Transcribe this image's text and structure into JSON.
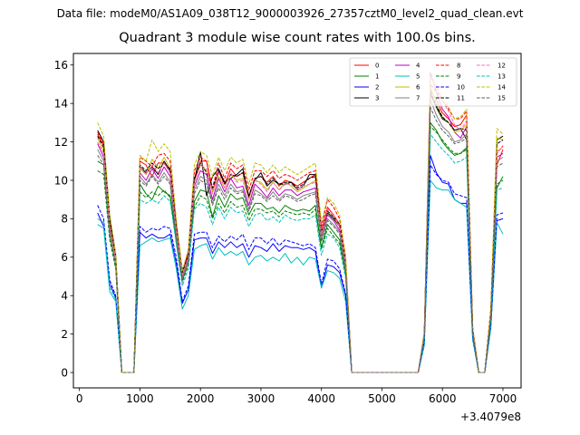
{
  "figure": {
    "suptitle": "Data file: modeM0/AS1A09_038T12_9000003926_27357cztM0_level2_quad_clean.evt"
  },
  "chart_data": {
    "type": "line",
    "title": "Quadrant 3 module wise count rates with 100.0s bins.",
    "xlabel": "",
    "ylabel": "",
    "x_offset_text": "+3.4079e8",
    "xlim": [
      -100,
      7300
    ],
    "ylim": [
      -0.8,
      16.6
    ],
    "xticks": [
      0,
      1000,
      2000,
      3000,
      4000,
      5000,
      6000,
      7000
    ],
    "yticks": [
      0,
      2,
      4,
      6,
      8,
      10,
      12,
      14,
      16
    ],
    "grid": false,
    "legend_position": "top-right",
    "x": [
      300,
      400,
      500,
      600,
      700,
      800,
      900,
      1000,
      1100,
      1200,
      1300,
      1400,
      1500,
      1600,
      1700,
      1800,
      1900,
      2000,
      2100,
      2200,
      2300,
      2400,
      2500,
      2600,
      2700,
      2800,
      2900,
      3000,
      3100,
      3200,
      3300,
      3400,
      3500,
      3600,
      3700,
      3800,
      3900,
      4000,
      4100,
      4200,
      4300,
      4400,
      4500,
      4600,
      4700,
      4800,
      4900,
      5000,
      5100,
      5200,
      5300,
      5400,
      5500,
      5600,
      5700,
      5800,
      5900,
      6000,
      6100,
      6200,
      6300,
      6400,
      6500,
      6600,
      6700,
      6800,
      6900,
      7000
    ],
    "series": [
      {
        "name": "0",
        "color": "#ff0000",
        "dashed": false,
        "values": [
          12.4,
          11.8,
          7.8,
          6.0,
          0,
          0,
          0,
          11.0,
          10.8,
          10.2,
          10.9,
          10.9,
          10.4,
          7.7,
          5.1,
          6.2,
          10.0,
          11.0,
          11.0,
          9.4,
          10.5,
          9.8,
          10.6,
          10.2,
          10.4,
          9.2,
          10.1,
          10.2,
          9.9,
          10.2,
          9.7,
          10.0,
          9.9,
          9.7,
          9.9,
          10.1,
          10.3,
          7.4,
          8.6,
          8.2,
          7.7,
          5.8,
          0,
          0,
          0,
          0,
          0,
          0,
          0,
          0,
          0,
          0,
          0,
          0,
          2.0,
          14.7,
          14.2,
          13.5,
          13.2,
          12.8,
          12.9,
          13.4,
          2.3,
          0,
          0,
          3.2,
          10.8,
          11.6
        ]
      },
      {
        "name": "1",
        "color": "#008000",
        "dashed": false,
        "values": [
          11.0,
          10.8,
          7.2,
          5.6,
          0,
          0,
          0,
          9.8,
          9.3,
          9.0,
          9.7,
          9.4,
          9.2,
          7.0,
          4.8,
          5.8,
          8.9,
          9.5,
          9.4,
          8.1,
          9.2,
          8.6,
          9.3,
          9.0,
          9.1,
          8.2,
          8.8,
          8.8,
          8.5,
          8.6,
          8.3,
          8.7,
          8.5,
          8.4,
          8.5,
          8.4,
          8.7,
          6.5,
          7.7,
          7.3,
          6.9,
          5.2,
          0,
          0,
          0,
          0,
          0,
          0,
          0,
          0,
          0,
          0,
          0,
          0,
          1.8,
          13.0,
          12.6,
          12.0,
          11.6,
          11.3,
          11.4,
          11.7,
          2.0,
          0,
          0,
          2.9,
          9.6,
          10.2
        ]
      },
      {
        "name": "2",
        "color": "#0000ff",
        "dashed": false,
        "values": [
          8.3,
          7.6,
          4.6,
          3.9,
          0,
          0,
          0,
          7.3,
          7.0,
          7.2,
          7.0,
          7.0,
          7.2,
          5.7,
          3.6,
          4.3,
          6.9,
          7.0,
          7.0,
          6.2,
          6.8,
          6.5,
          6.8,
          6.5,
          6.7,
          6.0,
          6.6,
          6.5,
          6.3,
          6.7,
          6.3,
          6.6,
          6.5,
          6.5,
          6.4,
          6.5,
          6.3,
          4.4,
          5.6,
          5.5,
          5.2,
          4.0,
          0,
          0,
          0,
          0,
          0,
          0,
          0,
          0,
          0,
          0,
          0,
          0,
          1.5,
          11.3,
          10.4,
          9.9,
          9.8,
          9.0,
          8.8,
          8.8,
          1.8,
          0,
          0,
          2.4,
          7.9,
          8.0
        ]
      },
      {
        "name": "3",
        "color": "#000000",
        "dashed": false,
        "values": [
          12.6,
          12.0,
          8.1,
          6.1,
          0,
          0,
          0,
          10.7,
          10.4,
          10.7,
          10.3,
          11.0,
          10.5,
          7.6,
          5.3,
          6.1,
          10.0,
          11.5,
          9.2,
          10.2,
          10.6,
          9.9,
          10.1,
          10.3,
          10.6,
          9.1,
          10.0,
          10.4,
          9.7,
          10.0,
          9.8,
          9.8,
          9.9,
          9.5,
          9.7,
          10.3,
          10.3,
          7.3,
          8.3,
          8.0,
          7.6,
          5.7,
          0,
          0,
          0,
          0,
          0,
          0,
          0,
          0,
          0,
          0,
          0,
          0,
          2.0,
          14.5,
          13.8,
          13.2,
          13.0,
          12.6,
          12.7,
          12.1,
          2.2,
          0,
          0,
          3.1,
          12.1,
          12.3
        ]
      },
      {
        "name": "4",
        "color": "#bf00bf",
        "dashed": false,
        "values": [
          11.9,
          11.2,
          7.5,
          5.8,
          0,
          0,
          0,
          10.4,
          10.0,
          10.6,
          10.1,
          10.7,
          10.2,
          7.3,
          5.0,
          5.9,
          9.7,
          10.5,
          10.3,
          9.0,
          10.1,
          9.4,
          10.1,
          9.6,
          9.7,
          8.7,
          9.8,
          9.5,
          9.1,
          9.6,
          9.2,
          9.5,
          9.5,
          9.2,
          9.4,
          9.5,
          9.6,
          7.1,
          8.2,
          7.9,
          7.4,
          5.5,
          0,
          0,
          0,
          0,
          0,
          0,
          0,
          0,
          0,
          0,
          0,
          0,
          1.9,
          15.6,
          14.6,
          13.7,
          13.3,
          12.5,
          12.2,
          12.8,
          2.2,
          0,
          0,
          3.0,
          11.2,
          11.4
        ]
      },
      {
        "name": "5",
        "color": "#00bfbf",
        "dashed": false,
        "values": [
          7.7,
          7.5,
          4.2,
          3.7,
          0,
          0,
          0,
          6.6,
          6.8,
          7.0,
          6.8,
          6.9,
          7.0,
          5.4,
          3.3,
          4.0,
          6.4,
          6.6,
          6.7,
          5.9,
          6.5,
          6.1,
          6.3,
          6.1,
          6.3,
          5.6,
          6.0,
          6.1,
          5.8,
          6.0,
          5.8,
          6.2,
          5.7,
          6.0,
          5.6,
          6.0,
          5.9,
          4.4,
          5.3,
          5.2,
          4.9,
          3.7,
          0,
          0,
          0,
          0,
          0,
          0,
          0,
          0,
          0,
          0,
          0,
          0,
          1.4,
          10.0,
          9.6,
          9.5,
          9.5,
          9.0,
          8.8,
          8.6,
          1.7,
          0,
          0,
          2.3,
          7.8,
          7.2
        ]
      },
      {
        "name": "6",
        "color": "#bfbf00",
        "dashed": false,
        "values": [
          12.2,
          11.5,
          7.7,
          5.9,
          0,
          0,
          0,
          10.6,
          10.3,
          11.1,
          10.6,
          11.2,
          10.6,
          7.5,
          5.1,
          6.0,
          9.9,
          10.8,
          10.5,
          9.4,
          10.2,
          9.6,
          10.3,
          10.0,
          10.1,
          9.0,
          10.0,
          9.9,
          9.5,
          9.9,
          9.5,
          9.9,
          9.7,
          9.4,
          9.6,
          9.8,
          10.0,
          7.2,
          8.4,
          8.1,
          7.6,
          5.7,
          0,
          0,
          0,
          0,
          0,
          0,
          0,
          0,
          0,
          0,
          0,
          0,
          2.0,
          14.9,
          14.0,
          13.3,
          13.0,
          12.5,
          12.6,
          12.9,
          2.2,
          0,
          0,
          3.1,
          12.2,
          12.1
        ]
      },
      {
        "name": "7",
        "color": "#808080",
        "dashed": false,
        "values": [
          11.6,
          11.0,
          7.4,
          5.7,
          0,
          0,
          0,
          10.2,
          9.8,
          10.3,
          9.9,
          10.4,
          9.9,
          7.1,
          4.9,
          5.8,
          9.5,
          10.2,
          10.0,
          8.8,
          9.8,
          9.2,
          9.8,
          9.4,
          9.5,
          8.5,
          9.5,
          9.3,
          9.0,
          9.4,
          9.0,
          9.3,
          9.2,
          9.0,
          9.2,
          9.3,
          9.4,
          6.9,
          8.0,
          7.7,
          7.3,
          5.4,
          0,
          0,
          0,
          0,
          0,
          0,
          0,
          0,
          0,
          0,
          0,
          0,
          1.9,
          14.2,
          13.4,
          12.8,
          12.5,
          12.0,
          12.1,
          12.4,
          2.1,
          0,
          0,
          2.9,
          11.0,
          11.2
        ]
      },
      {
        "name": "8",
        "color": "#ff0000",
        "dashed": true,
        "values": [
          12.5,
          11.9,
          7.9,
          6.0,
          0,
          0,
          0,
          11.2,
          11.0,
          10.7,
          11.3,
          11.4,
          11.0,
          7.8,
          5.2,
          6.3,
          10.5,
          11.2,
          11.0,
          9.6,
          10.9,
          10.1,
          10.9,
          10.6,
          10.8,
          9.5,
          10.5,
          10.5,
          10.2,
          10.5,
          10.1,
          10.3,
          10.2,
          10.0,
          10.2,
          10.4,
          10.5,
          7.6,
          9.0,
          8.6,
          8.0,
          6.0,
          0,
          0,
          0,
          0,
          0,
          0,
          0,
          0,
          0,
          0,
          0,
          0,
          2.1,
          15.0,
          14.6,
          14.2,
          13.7,
          13.2,
          13.2,
          13.6,
          2.3,
          0,
          0,
          3.3,
          11.4,
          11.8
        ]
      },
      {
        "name": "9",
        "color": "#008000",
        "dashed": true,
        "values": [
          10.5,
          10.3,
          6.9,
          5.4,
          0,
          0,
          0,
          9.4,
          9.1,
          9.4,
          9.2,
          9.5,
          9.1,
          6.8,
          4.7,
          5.6,
          8.6,
          9.2,
          9.0,
          8.0,
          8.8,
          8.3,
          8.9,
          8.6,
          8.7,
          7.9,
          8.5,
          8.5,
          8.3,
          8.4,
          8.1,
          8.4,
          8.3,
          8.2,
          8.3,
          8.2,
          8.5,
          6.4,
          7.5,
          7.1,
          6.7,
          5.1,
          0,
          0,
          0,
          0,
          0,
          0,
          0,
          0,
          0,
          0,
          0,
          0,
          1.8,
          12.8,
          12.5,
          12.1,
          11.7,
          11.4,
          11.4,
          11.6,
          2.0,
          0,
          0,
          2.8,
          9.8,
          10.0
        ]
      },
      {
        "name": "10",
        "color": "#0000ff",
        "dashed": true,
        "values": [
          8.7,
          8.0,
          4.8,
          4.0,
          0,
          0,
          0,
          7.6,
          7.3,
          7.5,
          7.4,
          7.6,
          7.5,
          6.0,
          3.7,
          4.5,
          7.2,
          7.3,
          7.3,
          6.5,
          7.1,
          6.8,
          7.1,
          6.9,
          7.2,
          6.4,
          7.0,
          7.0,
          6.7,
          7.0,
          6.6,
          6.9,
          6.8,
          6.7,
          6.6,
          6.7,
          6.5,
          4.6,
          5.9,
          5.8,
          5.4,
          4.1,
          0,
          0,
          0,
          0,
          0,
          0,
          0,
          0,
          0,
          0,
          0,
          0,
          1.6,
          10.8,
          10.3,
          10.0,
          9.9,
          9.3,
          9.2,
          9.1,
          1.8,
          0,
          0,
          2.5,
          8.2,
          8.3
        ]
      },
      {
        "name": "11",
        "color": "#000000",
        "dashed": true,
        "values": [
          12.3,
          11.7,
          7.9,
          6.0,
          0,
          0,
          0,
          10.8,
          10.5,
          10.9,
          10.6,
          10.9,
          10.6,
          7.6,
          5.2,
          6.1,
          10.1,
          10.9,
          10.4,
          9.6,
          10.5,
          9.8,
          10.3,
          10.2,
          10.4,
          9.2,
          10.1,
          10.2,
          9.8,
          10.1,
          9.8,
          9.9,
          9.9,
          9.6,
          9.8,
          10.1,
          10.2,
          7.3,
          8.4,
          8.1,
          7.7,
          5.7,
          0,
          0,
          0,
          0,
          0,
          0,
          0,
          0,
          0,
          0,
          0,
          0,
          2.0,
          14.6,
          13.9,
          13.3,
          13.0,
          12.6,
          12.7,
          12.6,
          2.2,
          0,
          0,
          3.1,
          11.9,
          12.1
        ]
      },
      {
        "name": "12",
        "color": "#ff69b4",
        "dashed": true,
        "values": [
          12.0,
          11.4,
          7.6,
          5.9,
          0,
          0,
          0,
          10.7,
          10.3,
          10.8,
          10.4,
          10.9,
          10.4,
          7.4,
          5.1,
          6.0,
          9.9,
          10.8,
          10.6,
          9.3,
          10.4,
          9.6,
          10.4,
          9.9,
          10.0,
          9.0,
          10.0,
          9.8,
          9.4,
          9.9,
          9.5,
          9.8,
          9.8,
          9.5,
          9.7,
          9.8,
          9.9,
          7.3,
          8.5,
          8.2,
          7.6,
          5.7,
          0,
          0,
          0,
          0,
          0,
          0,
          0,
          0,
          0,
          0,
          0,
          0,
          2.0,
          15.3,
          15.0,
          14.1,
          13.6,
          12.9,
          12.6,
          13.1,
          2.3,
          0,
          0,
          3.1,
          11.5,
          11.7
        ]
      },
      {
        "name": "13",
        "color": "#00bfbf",
        "dashed": true,
        "values": [
          8.0,
          7.8,
          4.4,
          3.8,
          0,
          0,
          0,
          9.0,
          8.8,
          9.0,
          8.8,
          9.2,
          8.9,
          6.7,
          4.5,
          5.4,
          8.5,
          8.8,
          8.6,
          7.7,
          8.6,
          8.0,
          8.6,
          8.3,
          8.4,
          7.6,
          8.2,
          8.3,
          7.9,
          8.1,
          7.8,
          8.2,
          8.0,
          7.9,
          8.0,
          8.0,
          8.2,
          6.1,
          7.2,
          7.0,
          6.5,
          4.9,
          0,
          0,
          0,
          0,
          0,
          0,
          0,
          0,
          0,
          0,
          0,
          0,
          1.7,
          12.4,
          12.0,
          11.6,
          11.3,
          10.9,
          11.0,
          11.2,
          1.9,
          0,
          0,
          2.7,
          9.5,
          9.6
        ]
      },
      {
        "name": "14",
        "color": "#bfbf00",
        "dashed": true,
        "values": [
          13.0,
          12.3,
          8.2,
          6.2,
          0,
          0,
          0,
          11.3,
          11.0,
          12.1,
          11.5,
          11.9,
          11.5,
          8.0,
          5.3,
          6.4,
          10.8,
          11.5,
          11.3,
          10.2,
          11.2,
          10.5,
          11.2,
          10.9,
          11.1,
          9.8,
          10.9,
          10.8,
          10.4,
          10.8,
          10.4,
          10.7,
          10.5,
          10.3,
          10.5,
          10.7,
          10.9,
          7.8,
          9.1,
          8.8,
          8.2,
          6.1,
          0,
          0,
          0,
          0,
          0,
          0,
          0,
          0,
          0,
          0,
          0,
          0,
          2.1,
          15.4,
          14.8,
          14.2,
          13.8,
          13.2,
          13.3,
          13.7,
          2.3,
          0,
          0,
          3.3,
          12.7,
          12.4
        ]
      },
      {
        "name": "15",
        "color": "#606060",
        "dashed": true,
        "values": [
          11.3,
          10.8,
          7.2,
          5.6,
          0,
          0,
          0,
          10.0,
          9.7,
          10.2,
          9.8,
          10.2,
          9.8,
          7.0,
          4.8,
          5.7,
          9.3,
          10.0,
          9.8,
          8.7,
          9.6,
          9.0,
          9.6,
          9.3,
          9.4,
          8.4,
          9.3,
          9.2,
          8.9,
          9.2,
          8.9,
          9.2,
          9.1,
          8.9,
          9.0,
          9.2,
          9.3,
          6.8,
          7.9,
          7.6,
          7.2,
          5.3,
          0,
          0,
          0,
          0,
          0,
          0,
          0,
          0,
          0,
          0,
          0,
          0,
          1.9,
          13.8,
          13.1,
          12.6,
          12.3,
          11.9,
          12.0,
          12.2,
          2.1,
          0,
          0,
          2.9,
          10.7,
          10.9
        ]
      }
    ]
  }
}
